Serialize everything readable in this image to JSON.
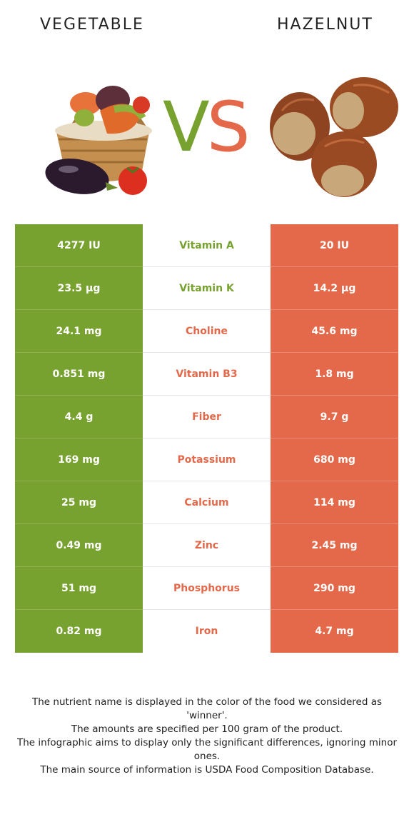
{
  "header": {
    "left_title": "VEGETABLE",
    "right_title": "HAZELNUT"
  },
  "vs": {
    "v": "V",
    "s": "S"
  },
  "colors": {
    "vegetable": "#78a22f",
    "hazelnut": "#e3694a"
  },
  "rows": [
    {
      "left": "4277 IU",
      "nutrient": "Vitamin A",
      "right": "20 IU",
      "winner": "left"
    },
    {
      "left": "23.5 µg",
      "nutrient": "Vitamin K",
      "right": "14.2 µg",
      "winner": "left"
    },
    {
      "left": "24.1 mg",
      "nutrient": "Choline",
      "right": "45.6 mg",
      "winner": "right"
    },
    {
      "left": "0.851 mg",
      "nutrient": "Vitamin B3",
      "right": "1.8 mg",
      "winner": "right"
    },
    {
      "left": "4.4 g",
      "nutrient": "Fiber",
      "right": "9.7 g",
      "winner": "right"
    },
    {
      "left": "169 mg",
      "nutrient": "Potassium",
      "right": "680 mg",
      "winner": "right"
    },
    {
      "left": "25 mg",
      "nutrient": "Calcium",
      "right": "114 mg",
      "winner": "right"
    },
    {
      "left": "0.49 mg",
      "nutrient": "Zinc",
      "right": "2.45 mg",
      "winner": "right"
    },
    {
      "left": "51 mg",
      "nutrient": "Phosphorus",
      "right": "290 mg",
      "winner": "right"
    },
    {
      "left": "0.82 mg",
      "nutrient": "Iron",
      "right": "4.7 mg",
      "winner": "right"
    }
  ],
  "notes": [
    "The nutrient name is displayed in the color of the food we considered as 'winner'.",
    "The amounts are specified per 100 gram of the product.",
    "The infographic aims to display only the significant differences, ignoring minor ones.",
    "The main source of information is USDA Food Composition Database."
  ]
}
